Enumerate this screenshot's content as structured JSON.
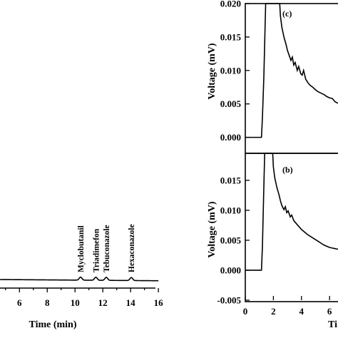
{
  "chart_data": [
    {
      "type": "line",
      "panel": "left",
      "title": "",
      "xlabel": "Time (min)",
      "ylabel": "",
      "xlim": [
        4.6,
        16.2
      ],
      "x_ticks": [
        "6",
        "8",
        "10",
        "12",
        "14",
        "16"
      ],
      "annotations": [
        "Myclobutanil",
        "Triadimefon",
        "Tebuconazole",
        "Hexaconazole"
      ],
      "peaks": [
        {
          "name": "Myclobutanil",
          "x": 10.4
        },
        {
          "name": "Triadimefon",
          "x": 11.5
        },
        {
          "name": "Tebuconazole",
          "x": 12.25
        },
        {
          "name": "Hexaconazole",
          "x": 14.05
        }
      ]
    },
    {
      "type": "line",
      "panel": "(c)",
      "label": "(c)",
      "xlabel": "",
      "ylabel": "Voltage (mV)",
      "ylim": [
        -0.001,
        0.02
      ],
      "y_ticks": [
        "0.020",
        "0.015",
        "0.010",
        "0.005",
        "0.000"
      ],
      "series": [
        {
          "x": [
            0.0,
            1.15,
            1.22,
            1.32,
            1.45,
            2.45,
            2.5,
            2.6,
            2.75,
            2.9,
            3.0,
            3.1,
            3.25,
            3.35,
            3.45,
            3.55,
            3.7,
            3.8,
            3.95,
            4.05,
            4.15,
            4.3,
            4.45,
            4.6,
            4.8,
            5.0,
            5.2,
            5.4,
            5.6,
            5.8,
            6.0,
            6.2,
            6.4,
            6.6
          ],
          "y": [
            0.0,
            0.0,
            0.003,
            0.009,
            0.02,
            0.02,
            0.0182,
            0.0165,
            0.015,
            0.0139,
            0.013,
            0.0124,
            0.0115,
            0.012,
            0.0108,
            0.0112,
            0.01,
            0.0106,
            0.0095,
            0.0093,
            0.01,
            0.0087,
            0.0082,
            0.0078,
            0.0075,
            0.0071,
            0.0068,
            0.0066,
            0.0064,
            0.0061,
            0.0059,
            0.0058,
            0.0053,
            0.0051
          ]
        }
      ]
    },
    {
      "type": "line",
      "panel": "(b)",
      "label": "(b)",
      "xlabel": "Ti",
      "ylabel": "Voltage (mV)",
      "xlim": [
        0,
        6.6
      ],
      "x_ticks": [
        "0",
        "2",
        "4",
        "6"
      ],
      "ylim": [
        -0.005,
        0.0195
      ],
      "y_ticks": [
        "0.015",
        "0.010",
        "0.005",
        "0.000",
        "-0.005"
      ],
      "series": [
        {
          "x": [
            0.0,
            1.15,
            1.22,
            1.3,
            1.38,
            1.95,
            2.0,
            2.1,
            2.25,
            2.4,
            2.5,
            2.6,
            2.75,
            2.85,
            2.95,
            3.05,
            3.2,
            3.3,
            3.45,
            3.55,
            3.7,
            3.85,
            4.0,
            4.2,
            4.4,
            4.6,
            4.8,
            5.0,
            5.2,
            5.4,
            5.6,
            5.8,
            6.0,
            6.2,
            6.4,
            6.6
          ],
          "y": [
            0.0,
            0.0,
            0.004,
            0.012,
            0.0195,
            0.0195,
            0.0172,
            0.0154,
            0.0138,
            0.0126,
            0.0116,
            0.0108,
            0.0101,
            0.0106,
            0.0096,
            0.0099,
            0.0089,
            0.0092,
            0.0083,
            0.008,
            0.0076,
            0.0072,
            0.0068,
            0.0064,
            0.006,
            0.0057,
            0.0054,
            0.0051,
            0.0048,
            0.0045,
            0.0042,
            0.004,
            0.0038,
            0.0037,
            0.0036,
            0.0035
          ]
        }
      ]
    }
  ]
}
